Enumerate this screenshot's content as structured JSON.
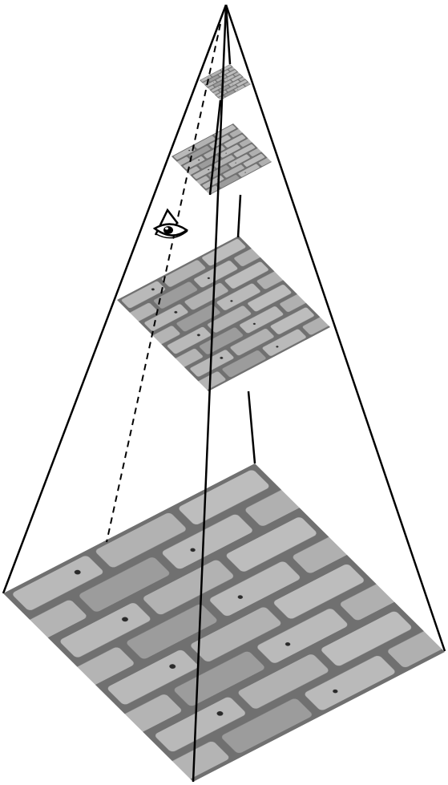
{
  "diagram": {
    "kind": "image-pyramid",
    "levels": [
      {
        "name": "level-0-finest",
        "texture": "brick"
      },
      {
        "name": "level-1",
        "texture": "brick"
      },
      {
        "name": "level-2",
        "texture": "brick"
      },
      {
        "name": "level-3-coarsest",
        "texture": "brick"
      }
    ],
    "viewer": {
      "icon": "eye-icon",
      "sight_line": "dashed"
    },
    "colors": {
      "edge": "#000000",
      "background": "#ffffff",
      "mortar": "#6f6f6f",
      "brick": "#b6b6b6",
      "brick_dark": "#8f8f8f"
    }
  }
}
